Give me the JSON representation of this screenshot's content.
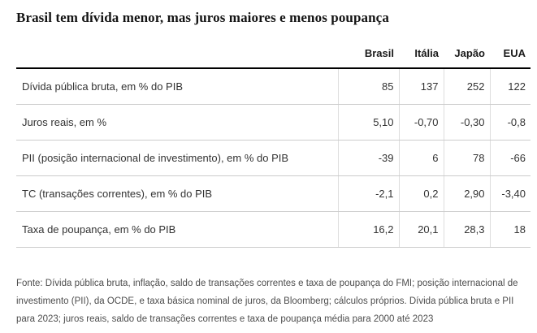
{
  "title": "Brasil tem dívida menor, mas juros maiores e menos poupança",
  "table": {
    "columns": [
      "Brasil",
      "Itália",
      "Japão",
      "EUA"
    ],
    "rows": [
      {
        "label": "Dívida pública bruta, em % do PIB",
        "values": [
          "85",
          "137",
          "252",
          "122"
        ]
      },
      {
        "label": "Juros reais, em %",
        "values": [
          "5,10",
          "-0,70",
          "-0,30",
          "-0,8"
        ]
      },
      {
        "label": "PII (posição internacional de investimento), em % do PIB",
        "values": [
          "-39",
          "6",
          "78",
          "-66"
        ]
      },
      {
        "label": "TC (transações correntes), em % do PIB",
        "values": [
          "-2,1",
          "0,2",
          "2,90",
          "-3,40"
        ]
      },
      {
        "label": "Taxa de poupança, em % do PIB",
        "values": [
          "16,2",
          "20,1",
          "28,3",
          "18"
        ]
      }
    ]
  },
  "source_note": "Fonte: Dívida pública bruta, inflação, saldo de transações correntes e taxa de poupança do FMI; posição internacional de investimento (PII), da OCDE, e taxa básica nominal de juros, da Bloomberg; cálculos próprios. Dívida pública bruta e PII para 2023; juros reais, saldo de transações correntes e taxa de poupança média para 2000 até 2023",
  "colors": {
    "header_rule": "#000000",
    "row_rule": "#cccccc",
    "column_rule": "#dddddd",
    "title_text": "#141414",
    "body_text": "#333333",
    "note_text": "#4d4d4d",
    "background": "#ffffff"
  },
  "chart_data": {
    "type": "table",
    "title": "Brasil tem dívida menor, mas juros maiores e menos poupança",
    "categories": [
      "Brasil",
      "Itália",
      "Japão",
      "EUA"
    ],
    "series": [
      {
        "name": "Dívida pública bruta, em % do PIB",
        "values": [
          85,
          137,
          252,
          122
        ]
      },
      {
        "name": "Juros reais, em %",
        "values": [
          5.1,
          -0.7,
          -0.3,
          -0.8
        ]
      },
      {
        "name": "PII (posição internacional de investimento), em % do PIB",
        "values": [
          -39,
          6,
          78,
          -66
        ]
      },
      {
        "name": "TC (transações correntes), em % do PIB",
        "values": [
          -2.1,
          0.2,
          2.9,
          -3.4
        ]
      },
      {
        "name": "Taxa de poupança, em % do PIB",
        "values": [
          16.2,
          20.1,
          28.3,
          18
        ]
      }
    ],
    "legend_position": "none",
    "grid": "horizontal-rules",
    "source": "Fonte: Dívida pública bruta, inflação, saldo de transações correntes e taxa de poupança do FMI; posição internacional de investimento (PII), da OCDE, e taxa básica nominal de juros, da Bloomberg; cálculos próprios. Dívida pública bruta e PII para 2023; juros reais, saldo de transações correntes e taxa de poupança média para 2000 até 2023"
  }
}
